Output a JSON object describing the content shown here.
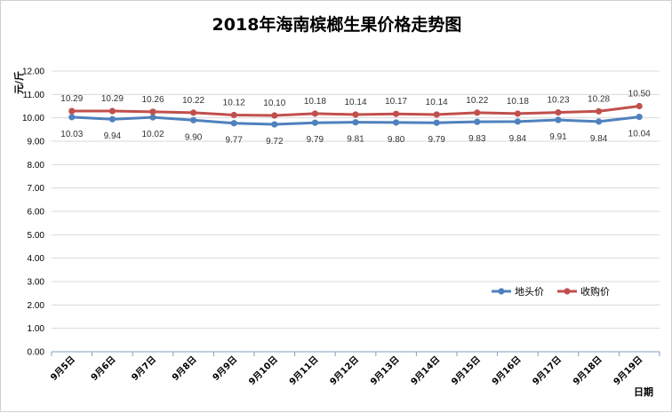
{
  "chart_data": {
    "type": "line",
    "title": "2018年海南槟榔生果价格走势图",
    "ylabel": "元/斤",
    "xlabel": "日期",
    "ylim": [
      0,
      12
    ],
    "ytick_step": 1,
    "ytick_format_decimals": 2,
    "grid": true,
    "legend_position": "right",
    "categories": [
      "9月5日",
      "9月6日",
      "9月7日",
      "9月8日",
      "9月9日",
      "9月10日",
      "9月11日",
      "9月12日",
      "9月13日",
      "9月14日",
      "9月15日",
      "9月16日",
      "9月17日",
      "9月18日",
      "9月19日"
    ],
    "series": [
      {
        "name": "地头价",
        "color": "#4f81bd",
        "label_position": "below",
        "values": [
          10.03,
          9.94,
          10.02,
          9.9,
          9.77,
          9.72,
          9.79,
          9.81,
          9.8,
          9.79,
          9.83,
          9.84,
          9.91,
          9.84,
          10.04
        ],
        "labels": [
          "10.03",
          "9.94",
          "10.02",
          "9.90",
          "9.77",
          "9.72",
          "9.79",
          "9.81",
          "9.80",
          "9.79",
          "9.83",
          "9.84",
          "9.91",
          "9.84",
          "10.04"
        ]
      },
      {
        "name": "收购价",
        "color": "#c0504d",
        "label_position": "above",
        "values": [
          10.29,
          10.29,
          10.26,
          10.22,
          10.12,
          10.1,
          10.18,
          10.14,
          10.17,
          10.14,
          10.22,
          10.18,
          10.23,
          10.28,
          10.5
        ],
        "labels": [
          "10.29",
          "10.29",
          "10.26",
          "10.22",
          "10.12",
          "10.10",
          "10.18",
          "10.14",
          "10.17",
          "10.14",
          "10.22",
          "10.18",
          "10.23",
          "10.28",
          "10.50"
        ]
      }
    ]
  }
}
